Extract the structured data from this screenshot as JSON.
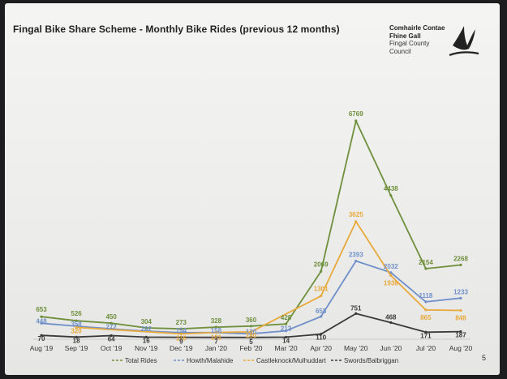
{
  "slide": {
    "title": "Fingal Bike Share Scheme - Monthly Bike Rides (previous 12 months)",
    "logo_lines": [
      "Comhairle Contae",
      "Fhine Gall",
      "Fingal County",
      "Council"
    ],
    "logo_icon": "bird-icon",
    "page_number": "5"
  },
  "chart_data": {
    "type": "line",
    "title": "Fingal Bike Share Scheme - Monthly Bike Rides (previous 12 months)",
    "categories": [
      "Aug '19",
      "Sep '19",
      "Oct '19",
      "Nov '19",
      "Dec '19",
      "Jan '20",
      "Feb '20",
      "Mar '20",
      "Apr '20",
      "May '20",
      "Jun '20",
      "Jul '20",
      "Aug '20"
    ],
    "series": [
      {
        "name": "Total Rides",
        "color": "#6e8f3b",
        "values": [
          653,
          526,
          450,
          304,
          273,
          328,
          360,
          428,
          2069,
          6769,
          4438,
          2154,
          2268
        ]
      },
      {
        "name": "Howth/Malahide",
        "color": "#6f8fc9",
        "values": [
          448,
          358,
          272,
          202,
          154,
          158,
          120,
          212,
          658,
          2393,
          2032,
          1118,
          1233
        ]
      },
      {
        "name": "Castleknock/Mulhuddart",
        "color": "#e8a93b",
        "values": [
          null,
          320,
          null,
          null,
          116,
          161,
          180,
          null,
          1301,
          3625,
          1938,
          865,
          848
        ]
      },
      {
        "name": "Swords/Balbriggan",
        "color": "#3a3a3a",
        "values": [
          70,
          18,
          64,
          16,
          9,
          7,
          5,
          14,
          110,
          751,
          468,
          171,
          187
        ]
      }
    ],
    "ylim": [
      0,
      7400
    ],
    "grid": false,
    "legend_position": "bottom",
    "legend_labels": [
      "Total Rides",
      "Howth/Malahide",
      "Castleknock/Mulhuddart",
      "Swords/Balbriggan"
    ]
  }
}
